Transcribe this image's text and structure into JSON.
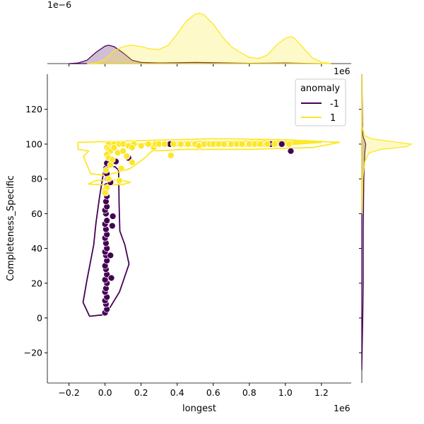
{
  "chart_data": {
    "type": "scatter",
    "subtype": "jointplot with kde contours and marginal kde",
    "xlabel": "longest",
    "ylabel": "Completeness_Specific",
    "x_offset_text": "1e6",
    "top_marginal_offset_text": "1e−6",
    "top_marginal_x_offset_text": "1e6",
    "xlim": [
      -0.32,
      1.365
    ],
    "ylim": [
      -37.4,
      140.2
    ],
    "xticks": [
      -0.2,
      0.0,
      0.2,
      0.4,
      0.6,
      0.8,
      1.0,
      1.2
    ],
    "xtick_labels": [
      "−0.2",
      "0.0",
      "0.2",
      "0.4",
      "0.6",
      "0.8",
      "1.0",
      "1.2"
    ],
    "yticks": [
      -20,
      0,
      20,
      40,
      60,
      80,
      100,
      120
    ],
    "ytick_labels": [
      "−20",
      "0",
      "20",
      "40",
      "60",
      "80",
      "100",
      "120"
    ],
    "grid": false,
    "legend": {
      "title": "anomaly",
      "placement": "top-right",
      "entries": [
        "-1",
        "1"
      ]
    },
    "colors": {
      "-1": "#440154",
      "1": "#fde725"
    },
    "series": [
      {
        "name": "-1",
        "points": [
          [
            0.0,
            3
          ],
          [
            0.01,
            5
          ],
          [
            0.005,
            8
          ],
          [
            0.0,
            10
          ],
          [
            0.01,
            12
          ],
          [
            0.0,
            15
          ],
          [
            0.005,
            17
          ],
          [
            0.01,
            20
          ],
          [
            0.0,
            22
          ],
          [
            0.01,
            25
          ],
          [
            0.005,
            28
          ],
          [
            0.0,
            30
          ],
          [
            0.01,
            33
          ],
          [
            0.005,
            36
          ],
          [
            0.0,
            38
          ],
          [
            0.01,
            40
          ],
          [
            0.005,
            43
          ],
          [
            0.0,
            46
          ],
          [
            0.01,
            48
          ],
          [
            0.005,
            51
          ],
          [
            0.0,
            54
          ],
          [
            0.01,
            56
          ],
          [
            0.005,
            60
          ],
          [
            0.0,
            62
          ],
          [
            0.01,
            64
          ],
          [
            0.005,
            67
          ],
          [
            0.01,
            70
          ],
          [
            0.005,
            73
          ],
          [
            0.01,
            76
          ],
          [
            0.015,
            80
          ],
          [
            0.01,
            83
          ],
          [
            0.005,
            86
          ],
          [
            0.01,
            89
          ],
          [
            0.035,
            23
          ],
          [
            0.03,
            36
          ],
          [
            0.04,
            53
          ],
          [
            0.043,
            58.5
          ],
          [
            0.03,
            78
          ],
          [
            0.06,
            90
          ],
          [
            0.13,
            92
          ],
          [
            0.36,
            100
          ],
          [
            0.92,
            100
          ],
          [
            0.98,
            100
          ],
          [
            1.03,
            96
          ]
        ],
        "contours": [
          [
            [
              -0.008,
              84
            ],
            [
              -0.03,
              70
            ],
            [
              -0.05,
              55
            ],
            [
              -0.063,
              42
            ],
            [
              -0.1,
              22
            ],
            [
              -0.122,
              9
            ],
            [
              -0.086,
              1
            ],
            [
              0.004,
              2
            ],
            [
              0.08,
              15
            ],
            [
              0.133,
              31
            ],
            [
              0.11,
              42
            ],
            [
              0.082,
              50
            ],
            [
              0.078,
              65
            ],
            [
              0.075,
              85
            ],
            [
              0.055,
              87
            ],
            [
              0.02,
              87
            ],
            [
              -0.008,
              84
            ]
          ]
        ],
        "marginal_x": {
          "x": [
            -0.2,
            -0.15,
            -0.1,
            -0.05,
            0.0,
            0.02,
            0.05,
            0.1,
            0.15,
            0.2,
            0.3,
            0.5,
            0.6,
            0.8,
            1.0,
            1.1,
            1.2
          ],
          "density": [
            0,
            0.02,
            0.12,
            0.4,
            0.62,
            0.65,
            0.6,
            0.38,
            0.12,
            0.04,
            0.02,
            0.04,
            0.03,
            0.01,
            0.02,
            0.01,
            0
          ]
        },
        "marginal_y": {
          "y": [
            -30,
            0,
            20,
            50,
            80,
            95,
            100,
            105,
            140
          ],
          "density": [
            0,
            0.002,
            0.003,
            0.003,
            0.004,
            0.006,
            0.008,
            0.002,
            0
          ]
        }
      },
      {
        "name": "1",
        "points": [
          [
            0.02,
            100
          ],
          [
            0.05,
            100
          ],
          [
            0.08,
            100
          ],
          [
            0.1,
            100
          ],
          [
            0.13,
            99
          ],
          [
            0.16,
            100
          ],
          [
            0.2,
            99
          ],
          [
            0.24,
            100
          ],
          [
            0.27,
            98
          ],
          [
            0.28,
            100
          ],
          [
            0.3,
            100
          ],
          [
            0.33,
            100
          ],
          [
            0.38,
            100
          ],
          [
            0.42,
            100
          ],
          [
            0.46,
            100
          ],
          [
            0.5,
            100
          ],
          [
            0.52,
            99
          ],
          [
            0.55,
            100
          ],
          [
            0.58,
            100
          ],
          [
            0.6,
            100
          ],
          [
            0.63,
            100
          ],
          [
            0.66,
            100
          ],
          [
            0.7,
            100
          ],
          [
            0.73,
            100
          ],
          [
            0.76,
            100
          ],
          [
            0.8,
            100
          ],
          [
            0.83,
            100
          ],
          [
            0.86,
            100
          ],
          [
            0.9,
            100
          ],
          [
            0.94,
            100
          ],
          [
            1.02,
            100
          ],
          [
            0.01,
            98
          ],
          [
            0.02,
            97
          ],
          [
            0.03,
            96
          ],
          [
            0.05,
            98
          ],
          [
            0.01,
            94
          ],
          [
            0.02,
            92
          ],
          [
            0.04,
            91
          ],
          [
            0.07,
            95
          ],
          [
            0.1,
            96
          ],
          [
            0.15,
            98
          ],
          [
            0.12,
            93
          ],
          [
            0.15,
            89.5
          ],
          [
            0.09,
            86
          ],
          [
            0.03,
            88
          ],
          [
            0.005,
            85
          ],
          [
            0.02,
            80
          ],
          [
            0.08,
            79
          ],
          [
            0.0,
            74
          ],
          [
            0.005,
            72
          ],
          [
            0.01,
            75
          ],
          [
            0.365,
            93.5
          ],
          [
            0.0,
            72
          ]
        ],
        "contours": [
          [
            [
              -0.15,
              101
            ],
            [
              0.2,
              102
            ],
            [
              0.58,
              103
            ],
            [
              0.72,
              103
            ],
            [
              1.0,
              102.5
            ],
            [
              1.3,
              101
            ],
            [
              1.15,
              98
            ],
            [
              0.8,
              97
            ],
            [
              0.45,
              97
            ],
            [
              0.26,
              96
            ],
            [
              0.22,
              92
            ],
            [
              0.14,
              86
            ],
            [
              0.08,
              84
            ],
            [
              0.0,
              82
            ],
            [
              -0.08,
              83
            ],
            [
              -0.1,
              88
            ],
            [
              -0.12,
              93
            ],
            [
              -0.09,
              96
            ],
            [
              -0.15,
              97
            ],
            [
              -0.15,
              101
            ]
          ],
          [
            [
              -0.094,
              77
            ],
            [
              -0.05,
              79
            ],
            [
              0.02,
              79.5
            ],
            [
              0.1,
              79
            ],
            [
              0.14,
              78
            ],
            [
              0.1,
              76.8
            ],
            [
              0.02,
              76.5
            ],
            [
              -0.05,
              76.8
            ],
            [
              -0.094,
              77
            ]
          ],
          [
            [
              0.15,
              100
            ],
            [
              0.5,
              101.5
            ],
            [
              0.9,
              101.8
            ],
            [
              1.2,
              101
            ],
            [
              0.9,
              98.8
            ],
            [
              0.5,
              98.8
            ],
            [
              0.15,
              100
            ]
          ],
          [
            [
              0.8,
              100
            ],
            [
              0.95,
              101
            ],
            [
              1.12,
              100.5
            ],
            [
              0.95,
              99.2
            ],
            [
              0.8,
              100
            ]
          ]
        ],
        "marginal_x": {
          "x": [
            -0.1,
            -0.05,
            0.0,
            0.05,
            0.1,
            0.15,
            0.2,
            0.25,
            0.3,
            0.35,
            0.4,
            0.45,
            0.5,
            0.525,
            0.55,
            0.6,
            0.65,
            0.7,
            0.75,
            0.8,
            0.85,
            0.9,
            0.95,
            1.0,
            1.03,
            1.05,
            1.1,
            1.15,
            1.2,
            1.25
          ],
          "density": [
            0,
            0.02,
            0.15,
            0.45,
            0.6,
            0.65,
            0.6,
            0.52,
            0.5,
            0.65,
            1.05,
            1.5,
            1.75,
            1.78,
            1.72,
            1.4,
            0.95,
            0.6,
            0.4,
            0.22,
            0.18,
            0.3,
            0.65,
            0.9,
            0.95,
            0.9,
            0.55,
            0.2,
            0.05,
            0.01
          ]
        },
        "marginal_y": {
          "y": [
            60,
            80,
            90,
            95,
            97,
            98.5,
            100,
            101.5,
            103,
            105,
            110,
            140
          ],
          "density": [
            0,
            0.002,
            0.006,
            0.015,
            0.04,
            0.09,
            0.1,
            0.06,
            0.02,
            0.005,
            0.001,
            0
          ]
        }
      }
    ]
  }
}
